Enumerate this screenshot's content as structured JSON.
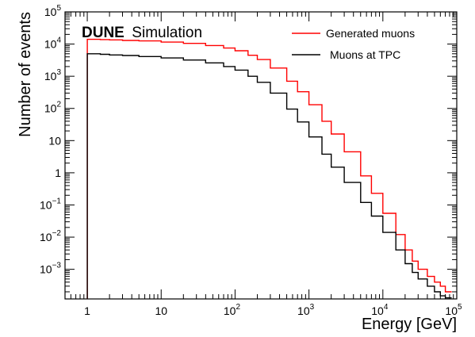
{
  "chart_data": {
    "type": "line",
    "step": true,
    "watermark": {
      "bold": "DUNE",
      "rest": "Simulation"
    },
    "xlabel": "Energy [GeV]",
    "ylabel": "Number of events",
    "xscale": "log",
    "yscale": "log",
    "xlim": [
      0.5,
      100000
    ],
    "ylim": [
      0.00012,
      100000
    ],
    "x_ticks": [
      {
        "value": 1,
        "base": "1",
        "exp": ""
      },
      {
        "value": 10,
        "base": "10",
        "exp": ""
      },
      {
        "value": 100,
        "base": "10",
        "exp": "2"
      },
      {
        "value": 1000,
        "base": "10",
        "exp": "3"
      },
      {
        "value": 10000,
        "base": "10",
        "exp": "4"
      },
      {
        "value": 100000,
        "base": "10",
        "exp": "5"
      }
    ],
    "y_ticks": [
      {
        "value": 0.001,
        "base": "10",
        "exp": "−3"
      },
      {
        "value": 0.01,
        "base": "10",
        "exp": "−2"
      },
      {
        "value": 0.1,
        "base": "10",
        "exp": "−1"
      },
      {
        "value": 1,
        "base": "1",
        "exp": ""
      },
      {
        "value": 10,
        "base": "10",
        "exp": ""
      },
      {
        "value": 100,
        "base": "10",
        "exp": "2"
      },
      {
        "value": 1000,
        "base": "10",
        "exp": "3"
      },
      {
        "value": 10000,
        "base": "10",
        "exp": "4"
      },
      {
        "value": 100000,
        "base": "10",
        "exp": "5"
      }
    ],
    "legend_position": "top-right",
    "series": [
      {
        "name": "Generated muons",
        "color": "#ff0000",
        "x": [
          1,
          1.5,
          2,
          3,
          5,
          10,
          20,
          40,
          70,
          100,
          150,
          200,
          300,
          500,
          700,
          1000,
          1500,
          2000,
          3000,
          5000,
          7000,
          10000,
          15000,
          20000,
          25000,
          30000,
          40000,
          50000,
          60000,
          70000
        ],
        "y": [
          14000,
          13800,
          13500,
          13000,
          12500,
          11500,
          10500,
          9000,
          7500,
          6200,
          4500,
          3300,
          1800,
          700,
          330,
          130,
          40,
          16,
          4.5,
          0.8,
          0.23,
          0.055,
          0.012,
          0.004,
          0.0018,
          0.001,
          0.0006,
          0.0004,
          0.0003,
          0.0002
        ]
      },
      {
        "name": "Muons at TPC",
        "color": "#000000",
        "x": [
          1,
          1.5,
          2,
          3,
          5,
          10,
          20,
          40,
          70,
          100,
          150,
          200,
          300,
          500,
          700,
          1000,
          1500,
          2000,
          3000,
          5000,
          7000,
          10000,
          15000,
          20000,
          25000,
          30000,
          40000,
          50000,
          60000,
          70000
        ],
        "y": [
          5000,
          4800,
          4600,
          4400,
          4100,
          3700,
          3200,
          2600,
          2000,
          1550,
          1000,
          650,
          300,
          95,
          38,
          13,
          3.8,
          1.5,
          0.5,
          0.12,
          0.045,
          0.014,
          0.004,
          0.0015,
          0.0008,
          0.0005,
          0.0003,
          0.0002,
          0.00015,
          0.00013
        ]
      }
    ]
  }
}
